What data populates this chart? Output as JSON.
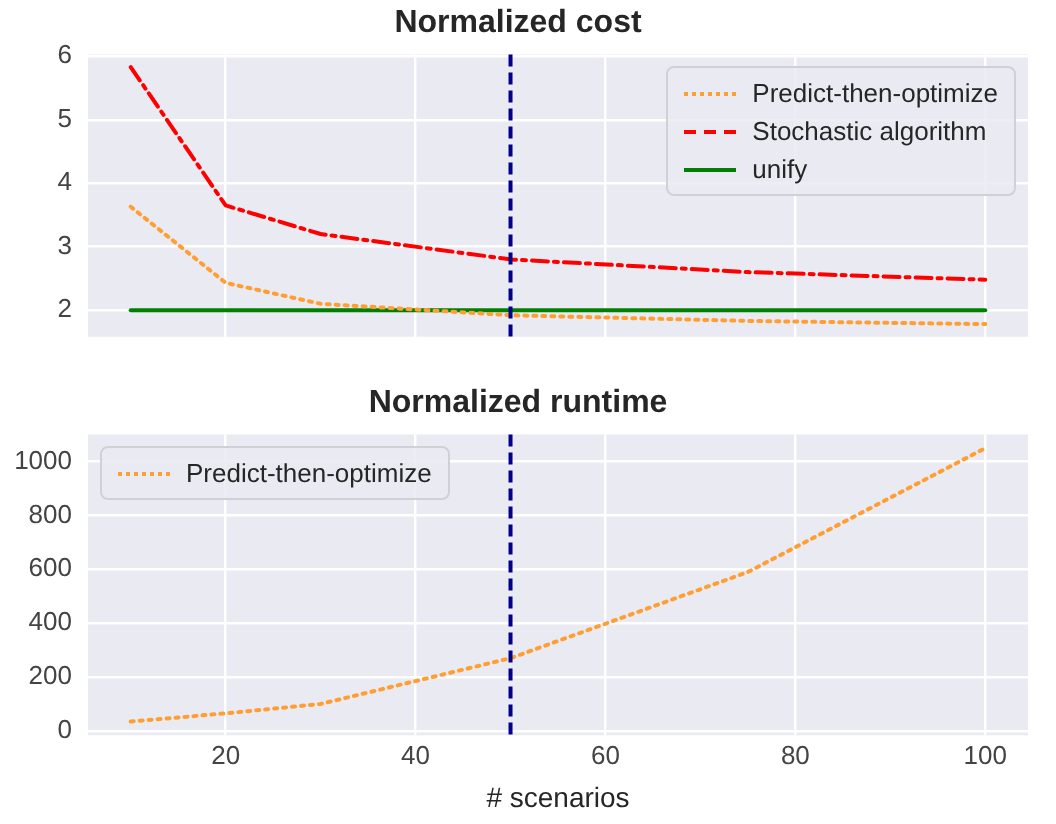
{
  "chart_data": [
    {
      "type": "line",
      "title": "Normalized cost",
      "x": [
        10,
        20,
        30,
        50,
        75,
        100
      ],
      "series": [
        {
          "name": "Predict-then-optimize",
          "color": "#ff9f33",
          "line_style": "dotted",
          "values": [
            3.63,
            2.43,
            2.1,
            1.92,
            1.83,
            1.78
          ]
        },
        {
          "name": "Stochastic algorithm",
          "color": "#ff0000",
          "line_style": "dashdot",
          "values": [
            5.83,
            3.65,
            3.2,
            2.8,
            2.6,
            2.48
          ]
        },
        {
          "name": "unify",
          "color": "#008000",
          "line_style": "solid",
          "values": [
            2,
            2,
            2,
            2,
            2,
            2
          ]
        }
      ],
      "xlim": [
        5.5,
        104.5
      ],
      "xticks": [
        20,
        40,
        60,
        80,
        100
      ],
      "ylim": [
        1.58,
        6.03
      ],
      "yticks": [
        2,
        3,
        4,
        5,
        6
      ],
      "tick_labels": "y",
      "grid": true,
      "legend": "top right",
      "marker": "none",
      "ref_lines": [
        {
          "axis": "x",
          "value": 50,
          "color": "#00008b",
          "line_style": "dashed"
        }
      ]
    },
    {
      "type": "line",
      "title": "Normalized runtime",
      "xlabel": "# scenarios",
      "x": [
        10,
        20,
        30,
        50,
        75,
        100
      ],
      "series": [
        {
          "name": "Predict-then-optimize",
          "color": "#ff9f33",
          "line_style": "dotted",
          "values": [
            35,
            65,
            100,
            270,
            590,
            1050
          ]
        }
      ],
      "xlim": [
        5.5,
        104.5
      ],
      "xticks": [
        20,
        40,
        60,
        80,
        100
      ],
      "ylim": [
        -16,
        1101
      ],
      "yticks": [
        0,
        200,
        400,
        600,
        800,
        1000
      ],
      "grid": true,
      "legend": "top left",
      "marker": "none",
      "ref_lines": [
        {
          "axis": "x",
          "value": 50,
          "color": "#00008b",
          "line_style": "dashed"
        }
      ]
    }
  ]
}
